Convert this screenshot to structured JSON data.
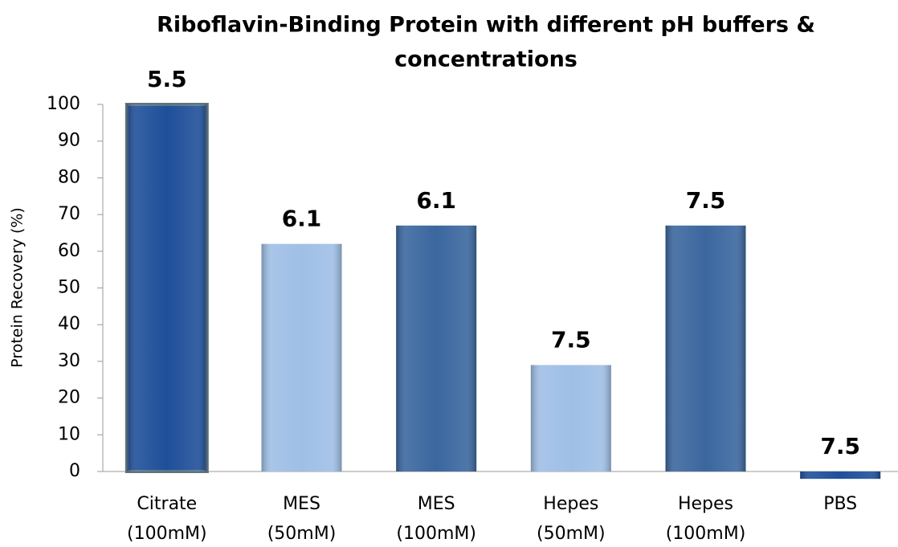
{
  "chart_data": {
    "type": "bar",
    "title": [
      "Riboflavin-Binding Protein with different  pH buffers &",
      "concentrations"
    ],
    "y_label": "Protein Recovery (%)",
    "categories": [
      [
        "Citrate",
        "(100mM)"
      ],
      [
        "MES",
        "(50mM)"
      ],
      [
        "MES",
        "(100mM)"
      ],
      [
        "Hepes",
        "(50mM)"
      ],
      [
        "Hepes",
        "(100mM)"
      ],
      [
        "PBS"
      ]
    ],
    "values": [
      100,
      62,
      67,
      29,
      67,
      -2
    ],
    "annotations": [
      "5.5",
      "6.1",
      "6.1",
      "7.5",
      "7.5",
      "7.5"
    ],
    "colors": [
      "#1f4f9a",
      "#9fbfe6",
      "#3b679f",
      "#9fbfe6",
      "#3b679f",
      "#1f4f9a"
    ],
    "ylim": [
      0,
      100
    ],
    "yticks": [
      0,
      10,
      20,
      30,
      40,
      50,
      60,
      70,
      80,
      90,
      100
    ],
    "grid": false
  }
}
